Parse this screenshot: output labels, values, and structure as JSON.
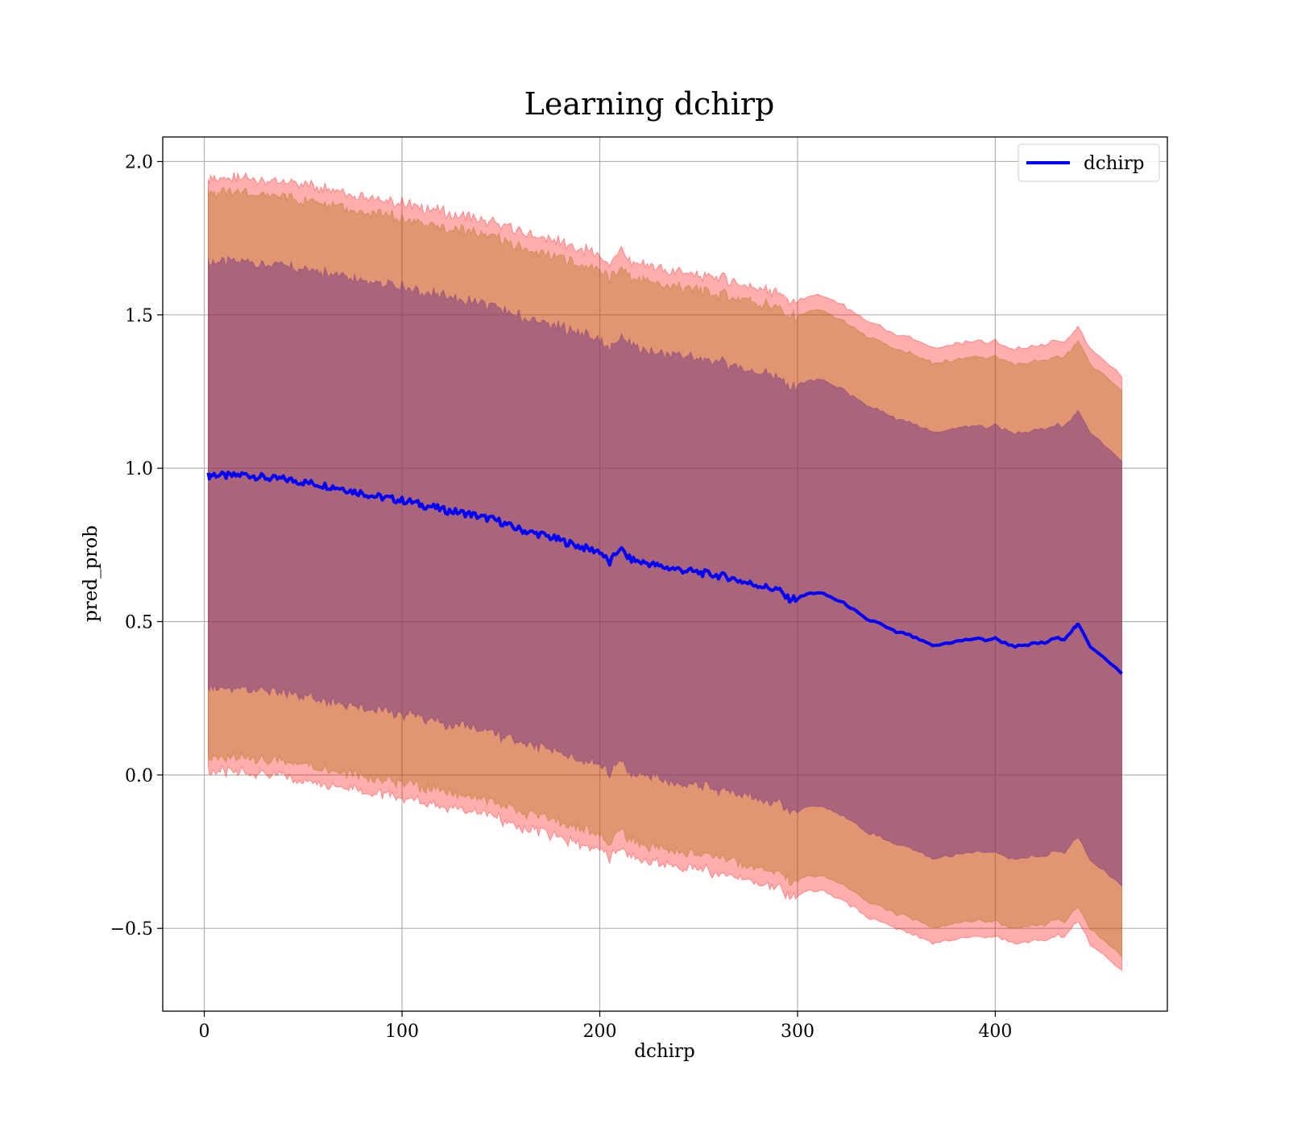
{
  "chart_data": {
    "type": "line",
    "title": "Learning dchirp",
    "xlabel": "dchirp",
    "ylabel": "pred_prob",
    "xlim": [
      -21,
      487
    ],
    "ylim": [
      -0.77,
      2.08
    ],
    "xticks": [
      0,
      100,
      200,
      300,
      400
    ],
    "xtick_labels": [
      "0",
      "100",
      "200",
      "300",
      "400"
    ],
    "yticks": [
      -0.5,
      0.0,
      0.5,
      1.0,
      1.5,
      2.0
    ],
    "ytick_labels": [
      "−0.5",
      "0.0",
      "0.5",
      "1.0",
      "1.5",
      "2.0"
    ],
    "grid": true,
    "legend": {
      "position": "top-right",
      "entries": [
        "dchirp"
      ]
    },
    "colors": {
      "line": "#0000ff",
      "band_outer": "#ff0000",
      "band_middle": "#aa6a00",
      "band_inner": "#6a2a8a"
    },
    "series": [
      {
        "name": "dchirp",
        "x": [
          2,
          5,
          10,
          15,
          20,
          25,
          30,
          35,
          40,
          45,
          50,
          55,
          60,
          65,
          70,
          75,
          80,
          85,
          90,
          95,
          100,
          105,
          110,
          115,
          120,
          125,
          130,
          135,
          140,
          145,
          150,
          155,
          160,
          165,
          170,
          175,
          180,
          185,
          190,
          195,
          200,
          205,
          210,
          215,
          220,
          225,
          230,
          235,
          240,
          245,
          250,
          255,
          260,
          265,
          270,
          275,
          280,
          285,
          290,
          295,
          300,
          305,
          310,
          315,
          320,
          325,
          330,
          335,
          340,
          345,
          350,
          355,
          360,
          365,
          370,
          375,
          380,
          385,
          390,
          395,
          400,
          405,
          410,
          415,
          420,
          425,
          430,
          435,
          440,
          442,
          448,
          455,
          464
        ],
        "values": [
          0.975,
          0.98,
          0.975,
          0.975,
          0.98,
          0.975,
          0.97,
          0.965,
          0.965,
          0.96,
          0.955,
          0.95,
          0.945,
          0.94,
          0.935,
          0.925,
          0.92,
          0.91,
          0.905,
          0.9,
          0.895,
          0.89,
          0.88,
          0.875,
          0.865,
          0.86,
          0.855,
          0.85,
          0.84,
          0.835,
          0.825,
          0.81,
          0.8,
          0.79,
          0.785,
          0.775,
          0.765,
          0.755,
          0.745,
          0.735,
          0.73,
          0.69,
          0.74,
          0.705,
          0.695,
          0.69,
          0.68,
          0.675,
          0.67,
          0.665,
          0.66,
          0.655,
          0.65,
          0.645,
          0.635,
          0.625,
          0.62,
          0.61,
          0.605,
          0.575,
          0.575,
          0.59,
          0.595,
          0.585,
          0.57,
          0.555,
          0.53,
          0.505,
          0.5,
          0.48,
          0.465,
          0.46,
          0.445,
          0.43,
          0.42,
          0.43,
          0.435,
          0.44,
          0.445,
          0.44,
          0.445,
          0.43,
          0.42,
          0.42,
          0.43,
          0.43,
          0.445,
          0.445,
          0.48,
          0.49,
          0.42,
          0.385,
          0.33
        ]
      }
    ],
    "bands": [
      {
        "offset": 0.97,
        "color": "#ff0000",
        "opacity": 0.32
      },
      {
        "offset": 0.92,
        "color": "#aa6a00",
        "opacity": 0.35
      },
      {
        "offset": 0.695,
        "color": "#6a2a8a",
        "opacity": 0.45
      }
    ]
  }
}
